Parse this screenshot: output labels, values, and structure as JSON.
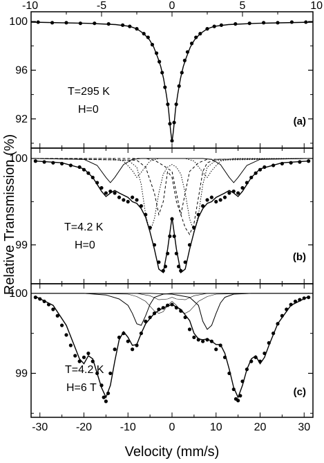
{
  "chart_data": [
    {
      "type": "scatter",
      "panel_label": "(a)",
      "annotations": [
        "T=295 K",
        "H=0"
      ],
      "top_axis": {
        "xlim": [
          -10,
          10
        ],
        "ticks": [
          -10,
          -5,
          0,
          5,
          10
        ],
        "tick_labels": [
          "-10",
          "-5",
          "0",
          "5",
          "10"
        ]
      },
      "ylim": [
        89.6,
        100.8
      ],
      "yticks": [
        92,
        96,
        100
      ],
      "ytick_labels": [
        "92",
        "96",
        "100"
      ],
      "data_xlim": [
        -10,
        10
      ],
      "series": [
        {
          "kind": "points",
          "x": [
            -9.5,
            -8.5,
            -7.5,
            -6.5,
            -5.5,
            -4.5,
            -3.5,
            -3.0,
            -2.5,
            -2.0,
            -1.7,
            -1.4,
            -1.1,
            -0.9,
            -0.7,
            -0.5,
            -0.3,
            -0.15,
            0.0,
            0.15,
            0.3,
            0.5,
            0.7,
            0.9,
            1.1,
            1.4,
            1.7,
            2.0,
            2.5,
            3.0,
            3.5,
            4.5,
            5.5,
            6.5,
            7.5,
            8.5,
            9.5
          ],
          "y": [
            99.95,
            99.9,
            99.9,
            99.85,
            99.85,
            99.8,
            99.7,
            99.6,
            99.4,
            99.0,
            98.7,
            98.1,
            97.4,
            96.7,
            95.8,
            94.6,
            93.2,
            91.6,
            90.2,
            91.7,
            93.2,
            94.7,
            95.8,
            96.8,
            97.5,
            98.2,
            98.7,
            99.0,
            99.4,
            99.6,
            99.7,
            99.8,
            99.85,
            99.9,
            99.9,
            99.95,
            99.95
          ]
        },
        {
          "kind": "fit",
          "x": [
            -10,
            -6,
            -4,
            -3,
            -2.5,
            -2,
            -1.6,
            -1.3,
            -1.0,
            -0.8,
            -0.6,
            -0.4,
            -0.25,
            -0.1,
            0,
            0.1,
            0.25,
            0.4,
            0.6,
            0.8,
            1.0,
            1.3,
            1.6,
            2,
            2.5,
            3,
            4,
            6,
            10
          ],
          "y": [
            99.95,
            99.85,
            99.75,
            99.6,
            99.4,
            99.0,
            98.5,
            97.9,
            97.0,
            96.3,
            95.3,
            94.0,
            92.8,
            91.0,
            90.1,
            91.0,
            92.8,
            94.0,
            95.3,
            96.3,
            97.0,
            97.9,
            98.5,
            99.0,
            99.4,
            99.6,
            99.75,
            99.85,
            99.95
          ]
        }
      ]
    },
    {
      "type": "scatter",
      "panel_label": "(b)",
      "annotations": [
        "T=4.2 K",
        "H=0"
      ],
      "ylim": [
        98.55,
        100.12
      ],
      "yticks": [
        99,
        100
      ],
      "ytick_labels": [
        "99",
        "100"
      ],
      "series": [
        {
          "kind": "points",
          "x": [
            -31,
            -29,
            -27,
            -25,
            -23,
            -21,
            -20,
            -19,
            -18,
            -17,
            -16,
            -15,
            -14,
            -13,
            -12,
            -11,
            -10,
            -9,
            -8,
            -7,
            -6,
            -5,
            -4,
            -3,
            -2,
            -1.5,
            -1,
            -0.5,
            0,
            0.5,
            1,
            1.5,
            2,
            3,
            4,
            5,
            6,
            7,
            8,
            9,
            10,
            11,
            12,
            13,
            14,
            15,
            16,
            17,
            18,
            19,
            20,
            21,
            23,
            25,
            27,
            29,
            31
          ],
          "y": [
            99.97,
            99.96,
            99.95,
            99.94,
            99.92,
            99.9,
            99.87,
            99.83,
            99.78,
            99.72,
            99.66,
            99.6,
            99.62,
            99.6,
            99.55,
            99.52,
            99.5,
            99.55,
            99.52,
            99.45,
            99.35,
            99.2,
            99.0,
            98.8,
            98.7,
            98.75,
            98.9,
            99.1,
            99.3,
            99.1,
            98.9,
            98.75,
            98.7,
            98.8,
            99.0,
            99.2,
            99.35,
            99.45,
            99.52,
            99.55,
            99.5,
            99.52,
            99.55,
            99.6,
            99.62,
            99.6,
            99.66,
            99.72,
            99.78,
            99.83,
            99.87,
            99.9,
            99.92,
            99.94,
            99.95,
            99.96,
            99.97
          ]
        },
        {
          "kind": "fit",
          "x": [
            -31,
            -25,
            -20,
            -18,
            -16,
            -15,
            -14,
            -13,
            -12,
            -10,
            -9,
            -8,
            -7,
            -6,
            -5,
            -4,
            -3,
            -2,
            -1,
            0,
            1,
            2,
            3,
            4,
            5,
            6,
            7,
            8,
            9,
            10,
            12,
            13,
            14,
            15,
            16,
            18,
            20,
            25,
            31
          ],
          "y": [
            99.97,
            99.95,
            99.88,
            99.78,
            99.62,
            99.56,
            99.6,
            99.63,
            99.6,
            99.55,
            99.5,
            99.48,
            99.42,
            99.32,
            99.15,
            98.95,
            98.72,
            98.68,
            98.95,
            99.32,
            98.95,
            98.68,
            98.72,
            98.95,
            99.15,
            99.32,
            99.42,
            99.48,
            99.5,
            99.55,
            99.6,
            99.63,
            99.6,
            99.56,
            99.62,
            99.78,
            99.88,
            99.95,
            99.97
          ]
        },
        {
          "kind": "component-solid",
          "x": [
            -31,
            -20,
            -17,
            -15,
            -14,
            -13,
            -11,
            -9,
            -7,
            -5,
            -3,
            -1,
            1,
            3,
            5,
            7,
            9,
            11,
            13,
            14,
            15,
            17,
            20,
            31
          ],
          "y": [
            100.0,
            99.99,
            99.92,
            99.78,
            99.72,
            99.78,
            99.93,
            99.99,
            100.0,
            100.0,
            100.0,
            100.0,
            100.0,
            100.0,
            100.0,
            100.0,
            99.99,
            99.93,
            99.78,
            99.72,
            99.78,
            99.92,
            99.99,
            100.0
          ]
        },
        {
          "kind": "component-dotted",
          "x": [
            -31,
            -14,
            -11,
            -9,
            -8,
            -7,
            -5,
            -3,
            -1,
            1,
            3,
            5,
            7,
            8,
            9,
            11,
            14,
            31
          ],
          "y": [
            100.0,
            100.0,
            99.97,
            99.86,
            99.78,
            99.84,
            99.97,
            100.0,
            100.0,
            100.0,
            100.0,
            99.97,
            99.84,
            99.78,
            99.86,
            99.97,
            100.0,
            100.0
          ]
        },
        {
          "kind": "component-dotted",
          "x": [
            -31,
            -10,
            -8,
            -7,
            -6,
            -5,
            -4,
            -3,
            -2,
            -1,
            0,
            1,
            2,
            3,
            4,
            5,
            6,
            7,
            8,
            10,
            31
          ],
          "y": [
            100.0,
            99.98,
            99.9,
            99.7,
            99.35,
            99.15,
            99.3,
            99.6,
            99.82,
            99.9,
            99.93,
            99.9,
            99.82,
            99.6,
            99.3,
            99.15,
            99.35,
            99.7,
            99.9,
            99.98,
            100.0
          ]
        },
        {
          "kind": "component-dashed",
          "x": [
            -31,
            -8,
            -6,
            -4,
            -3,
            -2,
            -1,
            0,
            1,
            2,
            3,
            4,
            6,
            8,
            31
          ],
          "y": [
            100.0,
            99.98,
            99.9,
            99.6,
            99.35,
            99.5,
            99.85,
            99.78,
            99.5,
            99.35,
            99.6,
            99.85,
            99.95,
            99.99,
            100.0
          ]
        },
        {
          "kind": "component-dashed",
          "x": [
            -31,
            -6,
            -4,
            -2,
            0,
            1,
            2,
            3,
            4,
            5,
            6,
            7,
            8,
            10,
            31
          ],
          "y": [
            100.0,
            100.0,
            99.98,
            99.92,
            99.85,
            99.6,
            99.35,
            99.2,
            99.12,
            99.25,
            99.55,
            99.85,
            99.95,
            99.99,
            100.0
          ]
        }
      ]
    },
    {
      "type": "scatter",
      "panel_label": "(c)",
      "annotations": [
        "T=4.2 K",
        "H=6 T"
      ],
      "ylim": [
        98.45,
        100.12
      ],
      "yticks": [
        99,
        100
      ],
      "ytick_labels": [
        "99",
        "100"
      ],
      "xlim": [
        -32,
        32
      ],
      "xticks": [
        -30,
        -20,
        -10,
        0,
        10,
        20,
        30
      ],
      "xtick_labels": [
        "-30",
        "-20",
        "-10",
        "0",
        "10",
        "20",
        "30"
      ],
      "xlabel": "Velocity (mm/s)",
      "series": [
        {
          "kind": "points",
          "x": [
            -31,
            -30,
            -29,
            -28,
            -27,
            -26,
            -25,
            -24,
            -23,
            -22,
            -21,
            -20,
            -19,
            -18,
            -17,
            -16,
            -15.5,
            -15,
            -14.5,
            -14,
            -13,
            -12,
            -11,
            -10,
            -9,
            -8,
            -7,
            -6,
            -5,
            -4,
            -3,
            -2,
            -1,
            0,
            1,
            2,
            3,
            4,
            5,
            6,
            7,
            8,
            9,
            10,
            11,
            12,
            13,
            14,
            14.5,
            15,
            15.5,
            16,
            17,
            18,
            19,
            20,
            21,
            22,
            23,
            24,
            25,
            26,
            27,
            28,
            29,
            30,
            31
          ],
          "y": [
            99.95,
            99.93,
            99.9,
            99.86,
            99.8,
            99.72,
            99.6,
            99.48,
            99.35,
            99.22,
            99.15,
            99.2,
            99.25,
            99.15,
            99.0,
            98.85,
            98.7,
            98.65,
            98.75,
            99.0,
            99.3,
            99.45,
            99.5,
            99.4,
            99.3,
            99.35,
            99.5,
            99.65,
            99.7,
            99.75,
            99.8,
            99.82,
            99.85,
            99.86,
            99.82,
            99.78,
            99.7,
            99.55,
            99.45,
            99.42,
            99.4,
            99.42,
            99.4,
            99.3,
            99.35,
            99.2,
            99.0,
            98.8,
            98.68,
            98.66,
            98.72,
            98.9,
            99.05,
            99.15,
            99.2,
            99.15,
            99.25,
            99.38,
            99.5,
            99.62,
            99.72,
            99.8,
            99.86,
            99.9,
            99.92,
            99.94,
            99.95
          ]
        },
        {
          "kind": "fit",
          "x": [
            -31,
            -27,
            -24,
            -22,
            -21,
            -20,
            -19,
            -18,
            -17,
            -16,
            -15,
            -14,
            -13,
            -12,
            -11,
            -10,
            -9,
            -8,
            -7,
            -6,
            -4,
            -2,
            0,
            2,
            4,
            5,
            6,
            7,
            8,
            9,
            10,
            11,
            12,
            13,
            14,
            15,
            16,
            17,
            18,
            19,
            20,
            21,
            22,
            24,
            27,
            31
          ],
          "y": [
            99.96,
            99.85,
            99.6,
            99.32,
            99.18,
            99.12,
            99.22,
            99.18,
            99.0,
            98.82,
            98.7,
            98.85,
            99.15,
            99.42,
            99.52,
            99.45,
            99.35,
            99.36,
            99.5,
            99.62,
            99.75,
            99.82,
            99.86,
            99.8,
            99.66,
            99.5,
            99.43,
            99.42,
            99.43,
            99.4,
            99.36,
            99.36,
            99.25,
            99.05,
            98.82,
            98.7,
            98.85,
            99.05,
            99.18,
            99.22,
            99.12,
            99.2,
            99.35,
            99.62,
            99.85,
            99.96
          ]
        },
        {
          "kind": "component-thin",
          "x": [
            -31,
            -20,
            -10,
            -8,
            -6,
            -5,
            -4,
            -3,
            -2,
            -1,
            0,
            1,
            2,
            3,
            4,
            5,
            6,
            8,
            10,
            20,
            31
          ],
          "y": [
            100.0,
            100.0,
            99.99,
            99.96,
            99.9,
            99.84,
            99.78,
            99.75,
            99.77,
            99.85,
            99.9,
            99.85,
            99.77,
            99.75,
            99.78,
            99.84,
            99.9,
            99.96,
            99.99,
            100.0,
            100.0
          ]
        },
        {
          "kind": "component-thin",
          "x": [
            -31,
            -8,
            -5,
            -3,
            -1,
            0,
            1,
            3,
            5,
            8,
            31
          ],
          "y": [
            100.0,
            100.0,
            99.97,
            99.92,
            99.93,
            99.95,
            99.93,
            99.92,
            99.97,
            100.0,
            100.0
          ]
        },
        {
          "kind": "component-solid",
          "x": [
            -31,
            -20,
            -15,
            -12,
            -10,
            -9,
            -8,
            -7,
            -6,
            -5,
            -4,
            -2,
            0,
            2,
            4,
            6,
            8,
            10,
            15,
            20,
            31
          ],
          "y": [
            100.0,
            100.0,
            99.98,
            99.93,
            99.85,
            99.75,
            99.62,
            99.6,
            99.72,
            99.86,
            99.95,
            99.99,
            100.0,
            100.0,
            100.0,
            100.0,
            100.0,
            100.0,
            100.0,
            100.0,
            100.0
          ]
        },
        {
          "kind": "component-solid",
          "x": [
            -31,
            -10,
            -5,
            0,
            4,
            6,
            7,
            8,
            9,
            10,
            11,
            12,
            14,
            18,
            31
          ],
          "y": [
            100.0,
            100.0,
            100.0,
            99.99,
            99.95,
            99.85,
            99.65,
            99.55,
            99.6,
            99.75,
            99.88,
            99.95,
            99.99,
            100.0,
            100.0
          ]
        }
      ]
    }
  ],
  "shared": {
    "ylabel": "Relative Transmission (%)",
    "xlim": [
      -32,
      32
    ]
  }
}
